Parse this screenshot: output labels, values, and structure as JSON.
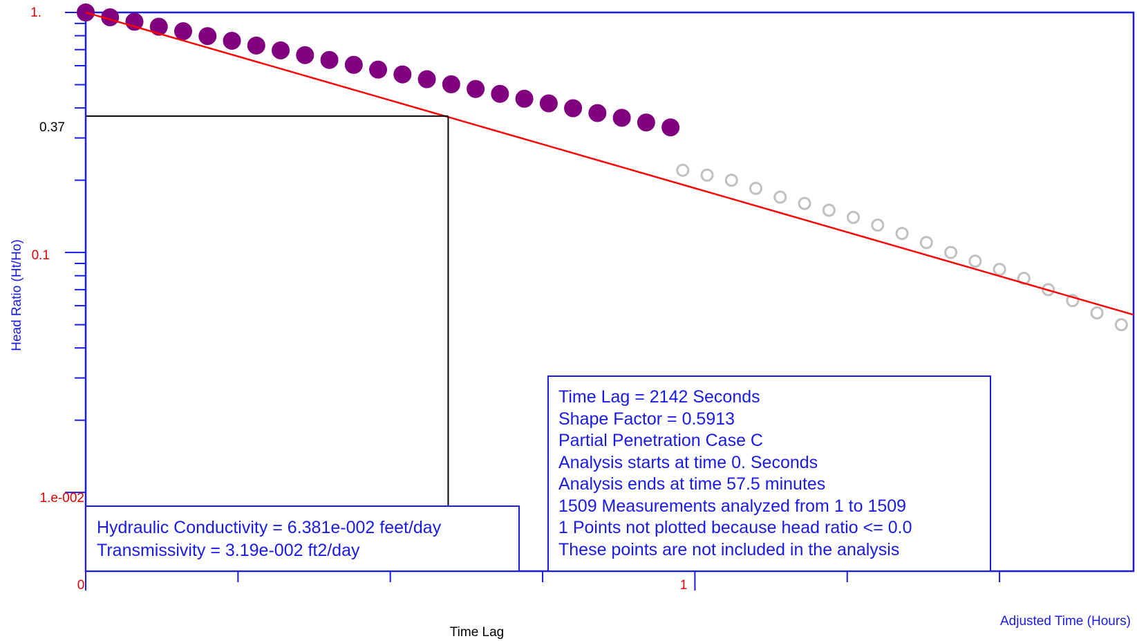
{
  "chart_data": {
    "type": "scatter",
    "title": "",
    "xlabel": "Adjusted Time (Hours)",
    "ylabel": "Head Ratio (Ht/Ho)",
    "x_scale": "linear",
    "y_scale": "log",
    "xlim": [
      0,
      1.72
    ],
    "ylim": [
      0.0047,
      1.0
    ],
    "x_tick_labels": [
      {
        "value": 0,
        "label": "0"
      },
      {
        "value": 1,
        "label": "1"
      }
    ],
    "y_tick_labels": [
      {
        "value": 1.0,
        "label": "1.",
        "color": "#e00000"
      },
      {
        "value": 0.37,
        "label": "0.37",
        "color": "#000000"
      },
      {
        "value": 0.1,
        "label": "0.1",
        "color": "#e00000"
      },
      {
        "value": 0.01,
        "label": "1.e-002",
        "color": "#e00000"
      }
    ],
    "fit_line": {
      "color": "#ff0000",
      "points": [
        [
          0,
          1.0
        ],
        [
          1.72,
          0.055
        ]
      ]
    },
    "time_lag_marker": {
      "label": "Time Lag",
      "x": 0.595,
      "y": 0.37,
      "color": "#000000"
    },
    "series": [
      {
        "role": "analyzed",
        "color": "#800080",
        "style": "filled",
        "points": [
          [
            0.0,
            1.0
          ],
          [
            0.04,
            0.955
          ],
          [
            0.08,
            0.915
          ],
          [
            0.12,
            0.872
          ],
          [
            0.16,
            0.835
          ],
          [
            0.2,
            0.797
          ],
          [
            0.24,
            0.762
          ],
          [
            0.28,
            0.728
          ],
          [
            0.32,
            0.695
          ],
          [
            0.36,
            0.664
          ],
          [
            0.4,
            0.634
          ],
          [
            0.44,
            0.605
          ],
          [
            0.48,
            0.578
          ],
          [
            0.52,
            0.552
          ],
          [
            0.56,
            0.527
          ],
          [
            0.6,
            0.502
          ],
          [
            0.64,
            0.48
          ],
          [
            0.68,
            0.458
          ],
          [
            0.72,
            0.437
          ],
          [
            0.76,
            0.418
          ],
          [
            0.8,
            0.399
          ],
          [
            0.84,
            0.381
          ],
          [
            0.88,
            0.364
          ],
          [
            0.92,
            0.348
          ],
          [
            0.96,
            0.332
          ]
        ]
      },
      {
        "role": "excluded",
        "color": "#c0c0c0",
        "style": "open",
        "points": [
          [
            0.98,
            0.22
          ],
          [
            1.02,
            0.21
          ],
          [
            1.06,
            0.2
          ],
          [
            1.1,
            0.185
          ],
          [
            1.14,
            0.17
          ],
          [
            1.18,
            0.16
          ],
          [
            1.22,
            0.15
          ],
          [
            1.26,
            0.14
          ],
          [
            1.3,
            0.13
          ],
          [
            1.34,
            0.12
          ],
          [
            1.38,
            0.11
          ],
          [
            1.42,
            0.1
          ],
          [
            1.46,
            0.092
          ],
          [
            1.5,
            0.085
          ],
          [
            1.54,
            0.078
          ],
          [
            1.58,
            0.07
          ],
          [
            1.62,
            0.063
          ],
          [
            1.66,
            0.056
          ],
          [
            1.7,
            0.05
          ]
        ]
      }
    ],
    "info_box": {
      "lines": [
        "Time Lag = 2142 Seconds",
        "Shape Factor = 0.5913",
        "Partial Penetration Case C",
        "Analysis starts at time 0. Seconds",
        "Analysis ends at time 57.5 minutes",
        "1509 Measurements analyzed from 1 to 1509",
        "1 Points not plotted because head ratio <= 0.0",
        "These points are not included in the analysis"
      ]
    },
    "results_box": {
      "lines": [
        "Hydraulic Conductivity = 6.381e-002 feet/day",
        "Transmissivity = 3.19e-002 ft2/day"
      ]
    },
    "colors": {
      "frame": "#1a1ae6",
      "tick_label_red": "#e00000",
      "fit_line": "#ff0000",
      "analyzed": "#800080",
      "excluded": "#c0c0c0"
    }
  }
}
